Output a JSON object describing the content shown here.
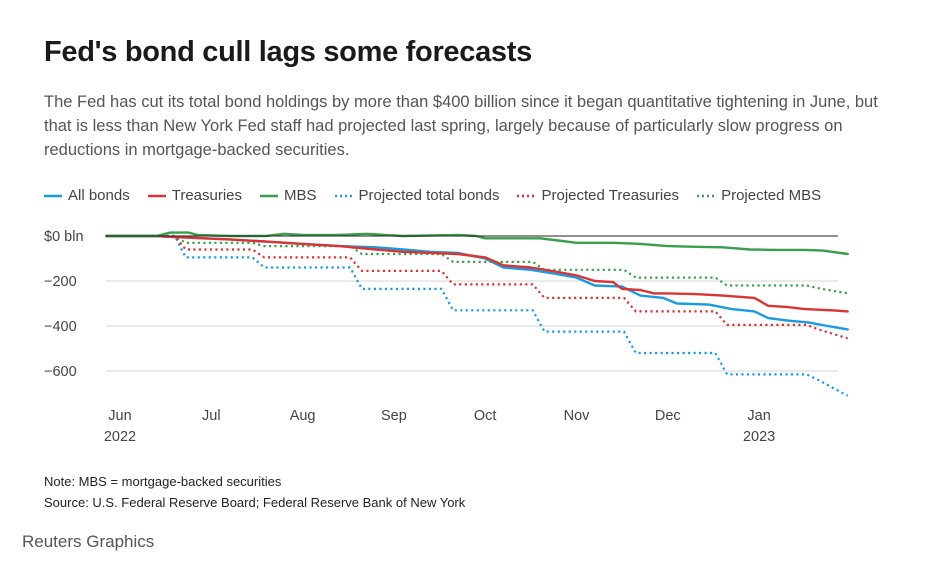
{
  "header": {
    "title": "Fed's bond cull lags some forecasts",
    "subtitle": "The Fed has cut its total bond holdings by more than $400 billion since it began quantitative tightening in June, but that is less than New York Fed staff had projected last spring, largely because of particularly slow progress on reductions in mortgage-backed securities."
  },
  "footer": {
    "note": "Note: MBS = mortgage-backed securities",
    "source": "Source: U.S. Federal Reserve Board; Federal Reserve Bank of New York",
    "brand": "Reuters Graphics"
  },
  "colors": {
    "blue": "#1a9be0",
    "red": "#d93434",
    "green": "#3a9e4c",
    "zero": "#222222",
    "grid": "#d6d6d6"
  },
  "chart_data": {
    "type": "line",
    "title": "Fed's bond cull lags some forecasts",
    "xlabel": "",
    "ylabel": "",
    "ylim": [
      -720,
      20
    ],
    "xlim": [
      0,
      8.2
    ],
    "y_ticks": [
      {
        "value": 0,
        "label": "$0 bln"
      },
      {
        "value": -200,
        "label": "−200"
      },
      {
        "value": -400,
        "label": "−400"
      },
      {
        "value": -600,
        "label": "−600"
      }
    ],
    "x_ticks": [
      {
        "value": 0,
        "label": "Jun",
        "sub": "2022"
      },
      {
        "value": 1,
        "label": "Jul",
        "sub": ""
      },
      {
        "value": 2,
        "label": "Aug",
        "sub": ""
      },
      {
        "value": 3,
        "label": "Sep",
        "sub": ""
      },
      {
        "value": 4,
        "label": "Oct",
        "sub": ""
      },
      {
        "value": 5,
        "label": "Nov",
        "sub": ""
      },
      {
        "value": 6,
        "label": "Dec",
        "sub": ""
      },
      {
        "value": 7,
        "label": "Jan",
        "sub": "2023"
      }
    ],
    "legend_position": "top",
    "series": [
      {
        "name": "All bonds",
        "color": "#1a9be0",
        "dash": false,
        "points": [
          [
            -0.15,
            0
          ],
          [
            0.4,
            0
          ],
          [
            0.6,
            -5
          ],
          [
            1.2,
            -15
          ],
          [
            1.6,
            -25
          ],
          [
            2.0,
            -35
          ],
          [
            2.4,
            -45
          ],
          [
            2.8,
            -50
          ],
          [
            3.1,
            -60
          ],
          [
            3.4,
            -70
          ],
          [
            3.7,
            -75
          ],
          [
            4.0,
            -100
          ],
          [
            4.2,
            -140
          ],
          [
            4.5,
            -150
          ],
          [
            4.8,
            -170
          ],
          [
            5.0,
            -185
          ],
          [
            5.2,
            -220
          ],
          [
            5.5,
            -225
          ],
          [
            5.7,
            -265
          ],
          [
            5.95,
            -275
          ],
          [
            6.1,
            -300
          ],
          [
            6.45,
            -305
          ],
          [
            6.7,
            -325
          ],
          [
            6.95,
            -335
          ],
          [
            7.1,
            -365
          ],
          [
            7.3,
            -375
          ],
          [
            7.55,
            -385
          ],
          [
            7.75,
            -400
          ],
          [
            7.97,
            -415
          ]
        ]
      },
      {
        "name": "Treasuries",
        "color": "#d93434",
        "dash": false,
        "points": [
          [
            -0.15,
            0
          ],
          [
            0.4,
            0
          ],
          [
            0.6,
            -5
          ],
          [
            1.2,
            -15
          ],
          [
            1.6,
            -25
          ],
          [
            2.0,
            -35
          ],
          [
            2.4,
            -45
          ],
          [
            2.8,
            -60
          ],
          [
            3.1,
            -70
          ],
          [
            3.4,
            -75
          ],
          [
            3.7,
            -80
          ],
          [
            4.0,
            -95
          ],
          [
            4.2,
            -130
          ],
          [
            4.5,
            -140
          ],
          [
            4.8,
            -160
          ],
          [
            5.0,
            -175
          ],
          [
            5.2,
            -200
          ],
          [
            5.4,
            -205
          ],
          [
            5.5,
            -235
          ],
          [
            5.7,
            -240
          ],
          [
            5.85,
            -255
          ],
          [
            6.0,
            -255
          ],
          [
            6.3,
            -258
          ],
          [
            6.6,
            -265
          ],
          [
            6.95,
            -275
          ],
          [
            7.1,
            -310
          ],
          [
            7.3,
            -315
          ],
          [
            7.5,
            -325
          ],
          [
            7.8,
            -330
          ],
          [
            7.97,
            -335
          ]
        ]
      },
      {
        "name": "MBS",
        "color": "#3a9e4c",
        "dash": false,
        "points": [
          [
            -0.15,
            0
          ],
          [
            0.4,
            0
          ],
          [
            0.55,
            15
          ],
          [
            0.75,
            15
          ],
          [
            0.85,
            5
          ],
          [
            1.2,
            0
          ],
          [
            1.6,
            0
          ],
          [
            1.8,
            10
          ],
          [
            2.0,
            5
          ],
          [
            2.4,
            5
          ],
          [
            2.7,
            10
          ],
          [
            2.9,
            5
          ],
          [
            3.1,
            0
          ],
          [
            3.7,
            5
          ],
          [
            3.9,
            0
          ],
          [
            4.0,
            -10
          ],
          [
            4.3,
            -10
          ],
          [
            4.6,
            -10
          ],
          [
            4.8,
            -20
          ],
          [
            5.0,
            -30
          ],
          [
            5.4,
            -30
          ],
          [
            5.7,
            -35
          ],
          [
            6.0,
            -45
          ],
          [
            6.3,
            -48
          ],
          [
            6.6,
            -50
          ],
          [
            6.9,
            -60
          ],
          [
            7.2,
            -62
          ],
          [
            7.5,
            -62
          ],
          [
            7.7,
            -65
          ],
          [
            7.97,
            -80
          ]
        ]
      },
      {
        "name": "Projected total bonds",
        "color": "#1a9be0",
        "dash": true,
        "points": [
          [
            -0.15,
            0
          ],
          [
            0.6,
            0
          ],
          [
            0.72,
            -95
          ],
          [
            1.45,
            -95
          ],
          [
            1.58,
            -140
          ],
          [
            2.52,
            -140
          ],
          [
            2.65,
            -235
          ],
          [
            3.52,
            -235
          ],
          [
            3.65,
            -330
          ],
          [
            4.52,
            -330
          ],
          [
            4.65,
            -425
          ],
          [
            5.52,
            -425
          ],
          [
            5.65,
            -520
          ],
          [
            6.52,
            -520
          ],
          [
            6.65,
            -615
          ],
          [
            7.52,
            -615
          ],
          [
            7.65,
            -640
          ],
          [
            7.97,
            -710
          ]
        ]
      },
      {
        "name": "Projected Treasuries",
        "color": "#d93434",
        "dash": true,
        "points": [
          [
            -0.15,
            0
          ],
          [
            0.6,
            0
          ],
          [
            0.72,
            -60
          ],
          [
            1.45,
            -60
          ],
          [
            1.58,
            -95
          ],
          [
            2.52,
            -95
          ],
          [
            2.65,
            -155
          ],
          [
            3.52,
            -155
          ],
          [
            3.65,
            -215
          ],
          [
            4.52,
            -215
          ],
          [
            4.65,
            -275
          ],
          [
            5.52,
            -275
          ],
          [
            5.65,
            -335
          ],
          [
            6.52,
            -335
          ],
          [
            6.65,
            -395
          ],
          [
            7.52,
            -395
          ],
          [
            7.65,
            -415
          ],
          [
            7.97,
            -455
          ]
        ]
      },
      {
        "name": "Projected MBS",
        "color": "#3a9e4c",
        "dash": true,
        "points": [
          [
            -0.15,
            0
          ],
          [
            0.6,
            0
          ],
          [
            0.72,
            -30
          ],
          [
            1.45,
            -30
          ],
          [
            1.58,
            -45
          ],
          [
            2.52,
            -45
          ],
          [
            2.65,
            -80
          ],
          [
            3.52,
            -80
          ],
          [
            3.65,
            -115
          ],
          [
            4.52,
            -115
          ],
          [
            4.65,
            -150
          ],
          [
            5.52,
            -150
          ],
          [
            5.65,
            -185
          ],
          [
            6.52,
            -185
          ],
          [
            6.65,
            -220
          ],
          [
            7.52,
            -220
          ],
          [
            7.65,
            -232
          ],
          [
            7.97,
            -255
          ]
        ]
      }
    ]
  }
}
